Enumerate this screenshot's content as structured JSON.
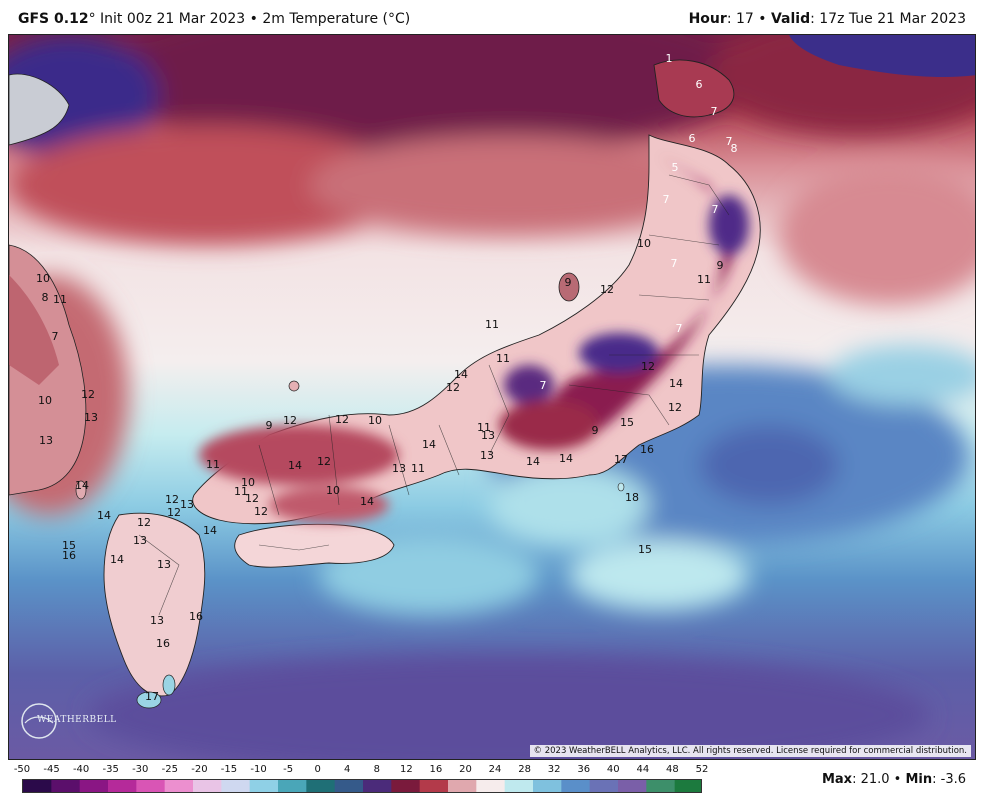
{
  "header": {
    "model": "GFS 0.12",
    "degree": "°",
    "init_text": " Init 00z 21 Mar 2023 • 2m Temperature (°C)",
    "hour_label": "Hour",
    "hour_value": ": 17 • ",
    "valid_label": "Valid",
    "valid_value": ": 17z Tue 21 Mar 2023"
  },
  "map": {
    "copyright": "© 2023 WeatherBELL Analytics, LLC. All rights reserved. License required for commercial distribution.",
    "logo_text": "WEATHERBELL",
    "temperature_labels": [
      "1",
      "6",
      "7",
      "6",
      "7",
      "8",
      "5",
      "7",
      "7",
      "10",
      "7",
      "9",
      "12",
      "9",
      "11",
      "7",
      "11",
      "11",
      "12",
      "7",
      "14",
      "12",
      "14",
      "12",
      "10",
      "9",
      "12",
      "12",
      "11",
      "13",
      "13",
      "14",
      "13",
      "11",
      "14",
      "9",
      "15",
      "17",
      "16",
      "18",
      "15",
      "14",
      "14",
      "12",
      "11",
      "10",
      "12",
      "10",
      "11",
      "12",
      "12",
      "13",
      "14",
      "14",
      "12",
      "12",
      "13",
      "14",
      "15",
      "16",
      "14",
      "13",
      "16",
      "13",
      "16",
      "17",
      "10",
      "8",
      "11",
      "7",
      "10",
      "12",
      "13",
      "13",
      "14"
    ]
  },
  "legend": {
    "ticks": [
      "-50",
      "-45",
      "-40",
      "-35",
      "-30",
      "-25",
      "-20",
      "-15",
      "-10",
      "-5",
      "0",
      "4",
      "8",
      "12",
      "16",
      "20",
      "24",
      "28",
      "32",
      "36",
      "40",
      "44",
      "48",
      "52"
    ],
    "colors": [
      "#2b0a4a",
      "#5b0f6b",
      "#8a1684",
      "#b52a9a",
      "#d955b5",
      "#ec8fcf",
      "#e9c4e6",
      "#cfd8f0",
      "#8fd0e6",
      "#4aa6b8",
      "#1f6f76",
      "#355a8a",
      "#4b2b7a",
      "#7a1a3c",
      "#b33a4a",
      "#e0a8ae",
      "#f6ecec",
      "#bfe9ee",
      "#7fc1de",
      "#5a8fc9",
      "#6a72b6",
      "#7a5fa8",
      "#3d8f6a",
      "#1c7a3e"
    ],
    "max_label": "Max",
    "max_value": ": 21.0 • ",
    "min_label": "Min",
    "min_value": ": -3.6"
  }
}
